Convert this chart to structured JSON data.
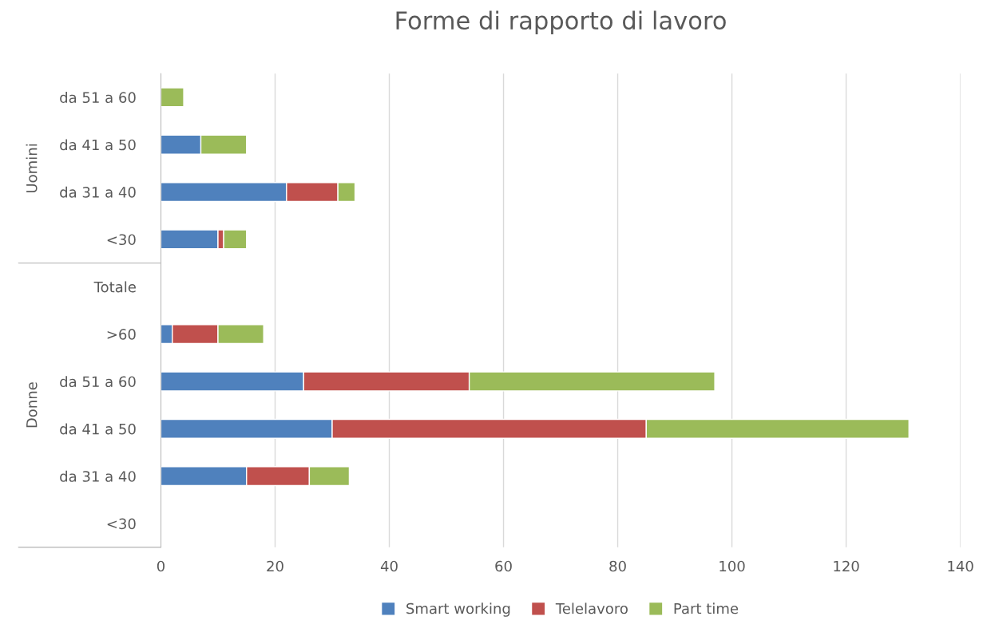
{
  "chart_data": {
    "type": "bar",
    "orientation": "horizontal",
    "stacked": true,
    "title": "Forme di rapporto di lavoro",
    "categories": [
      "da 51 a 60",
      "da 41 a 50",
      "da 31 a 40",
      "<30",
      "Totale",
      ">60",
      "da 51 a 60",
      "da 41 a 50",
      "da 31 a 40",
      "<30"
    ],
    "annotations": [
      "Uomini",
      "Donne"
    ],
    "series": [
      {
        "name": "Smart working",
        "color": "#4f81bd",
        "values": [
          null,
          7,
          22,
          10,
          null,
          2,
          25,
          30,
          15,
          null
        ]
      },
      {
        "name": "Telelavoro",
        "color": "#c0504d",
        "values": [
          null,
          null,
          9,
          1,
          null,
          8,
          29,
          55,
          11,
          null
        ]
      },
      {
        "name": "Part time",
        "color": "#9bbb59",
        "values": [
          4,
          8,
          3,
          4,
          null,
          8,
          43,
          46,
          7,
          null
        ]
      }
    ],
    "xlim": [
      0,
      140
    ],
    "xticks": [
      0,
      20,
      40,
      60,
      80,
      100,
      120,
      140
    ],
    "grid": "x",
    "legend": "bottom"
  }
}
